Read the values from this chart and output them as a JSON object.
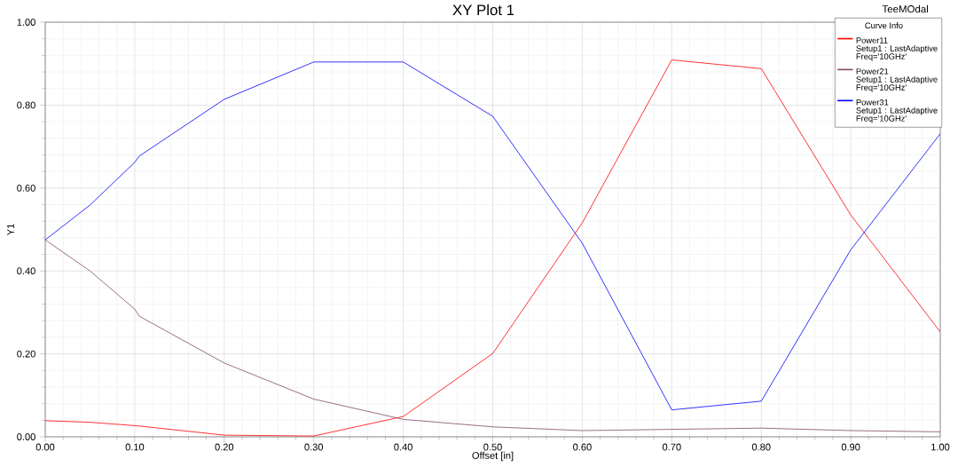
{
  "chart_data": {
    "type": "line",
    "title": "XY Plot 1",
    "xlabel": "Offset [in]",
    "ylabel": "Y1",
    "legend_title": "Curve Info",
    "annotations": [
      "TeeMOdal"
    ],
    "x": [
      0,
      0.05,
      0.1,
      0.105,
      0.2,
      0.3,
      0.4,
      0.5,
      0.6,
      0.7,
      0.8,
      0.9,
      1.0
    ],
    "series": [
      {
        "name": "Power11\nSetup1 : LastAdaptive\nFreq='10GHz'",
        "color": "#ff0000",
        "values": [
          0.039,
          0.035,
          0.027,
          0.026,
          0.004,
          0.002,
          0.049,
          0.201,
          0.516,
          0.909,
          0.888,
          0.535,
          0.253
        ]
      },
      {
        "name": "Power21\nSetup1 : LastAdaptive\nFreq='10GHz'",
        "color": "#804a6a",
        "values": [
          0.475,
          0.4,
          0.308,
          0.291,
          0.178,
          0.091,
          0.042,
          0.024,
          0.015,
          0.018,
          0.021,
          0.015,
          0.012
        ]
      },
      {
        "name": "Power31\nSetup1 : LastAdaptive\nFreq='10GHz'",
        "color": "#0000ff",
        "values": [
          0.475,
          0.559,
          0.662,
          0.677,
          0.814,
          0.904,
          0.904,
          0.773,
          0.467,
          0.065,
          0.086,
          0.451,
          0.731
        ]
      }
    ],
    "xlim": [
      0,
      1
    ],
    "ylim": [
      0,
      1
    ],
    "xticks": [
      {
        "value": 0,
        "label": "0.00"
      },
      {
        "value": 0.1,
        "label": "0.10"
      },
      {
        "value": 0.2,
        "label": "0.20"
      },
      {
        "value": 0.3,
        "label": "0.30"
      },
      {
        "value": 0.4,
        "label": "0.40"
      },
      {
        "value": 0.5,
        "label": "0.50"
      },
      {
        "value": 0.6,
        "label": "0.60"
      },
      {
        "value": 0.7,
        "label": "0.70"
      },
      {
        "value": 0.8,
        "label": "0.80"
      },
      {
        "value": 0.9,
        "label": "0.90"
      },
      {
        "value": 1,
        "label": "1.00"
      }
    ],
    "yticks": [
      {
        "value": 0,
        "label": "0.00"
      },
      {
        "value": 0.2,
        "label": "0.20"
      },
      {
        "value": 0.4,
        "label": "0.40"
      },
      {
        "value": 0.6,
        "label": "0.60"
      },
      {
        "value": 0.8,
        "label": "0.80"
      },
      {
        "value": 1,
        "label": "1.00"
      }
    ],
    "grid": true,
    "legend": "top right"
  }
}
